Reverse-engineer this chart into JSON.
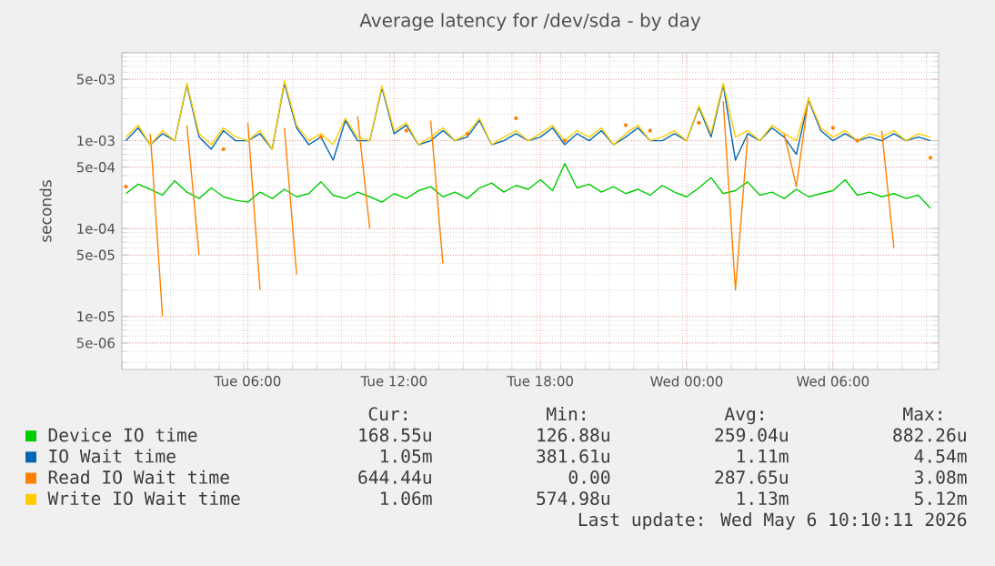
{
  "chart_data": {
    "type": "line",
    "title": "Average latency for /dev/sda - by day",
    "ylabel": "seconds",
    "x": [
      "2026-05-05T01:00",
      "2026-05-05T01:30",
      "2026-05-05T02:00",
      "2026-05-05T02:30",
      "2026-05-05T03:00",
      "2026-05-05T03:30",
      "2026-05-05T04:00",
      "2026-05-05T04:30",
      "2026-05-05T05:00",
      "2026-05-05T05:30",
      "2026-05-05T06:00",
      "2026-05-05T06:30",
      "2026-05-05T07:00",
      "2026-05-05T07:30",
      "2026-05-05T08:00",
      "2026-05-05T08:30",
      "2026-05-05T09:00",
      "2026-05-05T09:30",
      "2026-05-05T10:00",
      "2026-05-05T10:30",
      "2026-05-05T11:00",
      "2026-05-05T11:30",
      "2026-05-05T12:00",
      "2026-05-05T12:30",
      "2026-05-05T13:00",
      "2026-05-05T13:30",
      "2026-05-05T14:00",
      "2026-05-05T14:30",
      "2026-05-05T15:00",
      "2026-05-05T15:30",
      "2026-05-05T16:00",
      "2026-05-05T16:30",
      "2026-05-05T17:00",
      "2026-05-05T17:30",
      "2026-05-05T18:00",
      "2026-05-05T18:30",
      "2026-05-05T19:00",
      "2026-05-05T19:30",
      "2026-05-05T20:00",
      "2026-05-05T20:30",
      "2026-05-05T21:00",
      "2026-05-05T21:30",
      "2026-05-05T22:00",
      "2026-05-05T22:30",
      "2026-05-05T23:00",
      "2026-05-05T23:30",
      "2026-05-06T00:00",
      "2026-05-06T00:30",
      "2026-05-06T01:00",
      "2026-05-06T01:30",
      "2026-05-06T02:00",
      "2026-05-06T02:30",
      "2026-05-06T03:00",
      "2026-05-06T03:30",
      "2026-05-06T04:00",
      "2026-05-06T04:30",
      "2026-05-06T05:00",
      "2026-05-06T05:30",
      "2026-05-06T06:00",
      "2026-05-06T06:30",
      "2026-05-06T07:00",
      "2026-05-06T07:30",
      "2026-05-06T08:00",
      "2026-05-06T08:30",
      "2026-05-06T09:00",
      "2026-05-06T09:30",
      "2026-05-06T10:00"
    ],
    "series": [
      {
        "name": "Device IO time",
        "color": "#00cc00",
        "values": [
          0.00025,
          0.00032,
          0.00028,
          0.00024,
          0.00035,
          0.00026,
          0.00022,
          0.00029,
          0.00023,
          0.00021,
          0.0002,
          0.00026,
          0.00022,
          0.00028,
          0.00023,
          0.00025,
          0.00034,
          0.00024,
          0.00022,
          0.00026,
          0.00023,
          0.0002,
          0.00025,
          0.00022,
          0.00027,
          0.0003,
          0.00023,
          0.00026,
          0.00022,
          0.00029,
          0.00033,
          0.00026,
          0.00031,
          0.00028,
          0.00036,
          0.00027,
          0.00055,
          0.00029,
          0.00032,
          0.00026,
          0.0003,
          0.00025,
          0.00028,
          0.00024,
          0.00031,
          0.00026,
          0.00023,
          0.00029,
          0.00038,
          0.00025,
          0.00027,
          0.00034,
          0.00024,
          0.00026,
          0.00022,
          0.00028,
          0.00023,
          0.00025,
          0.00027,
          0.00036,
          0.00024,
          0.00026,
          0.00023,
          0.00025,
          0.00022,
          0.00024,
          0.00017
        ]
      },
      {
        "name": "IO Wait time",
        "color": "#0066b3",
        "values": [
          0.001,
          0.0014,
          0.0009,
          0.0012,
          0.001,
          0.0043,
          0.0011,
          0.0008,
          0.0013,
          0.001,
          0.001,
          0.0012,
          0.0008,
          0.0045,
          0.0014,
          0.0009,
          0.0011,
          0.0006,
          0.0017,
          0.001,
          0.001,
          0.004,
          0.0012,
          0.0015,
          0.0009,
          0.001,
          0.0013,
          0.001,
          0.0011,
          0.0017,
          0.0009,
          0.001,
          0.0012,
          0.001,
          0.0011,
          0.0014,
          0.0009,
          0.0012,
          0.001,
          0.0013,
          0.0009,
          0.0011,
          0.0014,
          0.001,
          0.001,
          0.0012,
          0.001,
          0.0024,
          0.0011,
          0.0043,
          0.0006,
          0.0012,
          0.001,
          0.0014,
          0.0011,
          0.0007,
          0.0029,
          0.0013,
          0.001,
          0.0012,
          0.001,
          0.0011,
          0.001,
          0.0012,
          0.001,
          0.0011,
          0.001
        ]
      },
      {
        "name": "Read IO Wait time",
        "color": "#ff8000",
        "values": [
          0.0003,
          null,
          0.0012,
          1e-05,
          null,
          0.0015,
          5e-05,
          null,
          0.0008,
          null,
          0.0016,
          2e-05,
          null,
          0.0014,
          3e-05,
          null,
          0.0011,
          null,
          null,
          0.0019,
          0.0001,
          null,
          null,
          0.0013,
          null,
          0.0017,
          4e-05,
          null,
          0.0012,
          null,
          null,
          null,
          0.0018,
          null,
          null,
          null,
          0.001,
          null,
          null,
          null,
          null,
          0.0015,
          null,
          0.0013,
          null,
          null,
          null,
          0.0016,
          null,
          0.0028,
          2e-05,
          0.0011,
          null,
          null,
          0.0012,
          0.0003,
          0.0031,
          null,
          0.0014,
          null,
          0.001,
          null,
          0.0013,
          6e-05,
          null,
          null,
          0.00064
        ]
      },
      {
        "name": "Write IO Wait time",
        "color": "#ffcc00",
        "values": [
          0.0011,
          0.0015,
          0.0009,
          0.0013,
          0.001,
          0.0045,
          0.0012,
          0.0009,
          0.0014,
          0.0011,
          0.001,
          0.0013,
          0.0008,
          0.0048,
          0.0015,
          0.001,
          0.0012,
          0.0009,
          0.0018,
          0.0011,
          0.001,
          0.0042,
          0.0013,
          0.0016,
          0.0009,
          0.0011,
          0.0014,
          0.001,
          0.0012,
          0.0018,
          0.0009,
          0.0011,
          0.0013,
          0.001,
          0.0012,
          0.0015,
          0.001,
          0.0013,
          0.0011,
          0.0014,
          0.0009,
          0.0012,
          0.0015,
          0.001,
          0.0011,
          0.0013,
          0.001,
          0.0025,
          0.0012,
          0.0045,
          0.0011,
          0.0013,
          0.001,
          0.0015,
          0.0012,
          0.001,
          0.003,
          0.0014,
          0.0011,
          0.0013,
          0.001,
          0.0012,
          0.0011,
          0.0013,
          0.001,
          0.0012,
          0.0011
        ]
      }
    ],
    "ylim": [
      2.5e-06,
      0.01
    ],
    "log": "y",
    "yticks": [
      {
        "value": 5e-06,
        "label": "5e-06"
      },
      {
        "value": 1e-05,
        "label": "1e-05"
      },
      {
        "value": 5e-05,
        "label": "5e-05"
      },
      {
        "value": 0.0001,
        "label": "1e-04"
      },
      {
        "value": 0.0005,
        "label": "5e-04"
      },
      {
        "value": 0.001,
        "label": "1e-03"
      },
      {
        "value": 0.005,
        "label": "5e-03"
      }
    ],
    "xlim": [
      "2026-05-05T00:50",
      "2026-05-06T10:20"
    ],
    "xticks": [
      {
        "value": "2026-05-05T06:00",
        "label": "Tue 06:00"
      },
      {
        "value": "2026-05-05T12:00",
        "label": "Tue 12:00"
      },
      {
        "value": "2026-05-05T18:00",
        "label": "Tue 18:00"
      },
      {
        "value": "2026-05-06T00:00",
        "label": "Wed 00:00"
      },
      {
        "value": "2026-05-06T06:00",
        "label": "Wed 06:00"
      }
    ],
    "grid": true,
    "legend": "bottom",
    "annotations": [
      "Cur:",
      "Min:",
      "Avg:",
      "Max:",
      "168.55u",
      "126.88u",
      "259.04u",
      "882.26u",
      "1.05m",
      "381.61u",
      "1.11m",
      "4.54m",
      "644.44u",
      "0.00",
      "287.65u",
      "3.08m",
      "1.06m",
      "574.98u",
      "1.13m",
      "5.12m",
      "Last update: Wed May  6 10:10:11 2026"
    ]
  }
}
